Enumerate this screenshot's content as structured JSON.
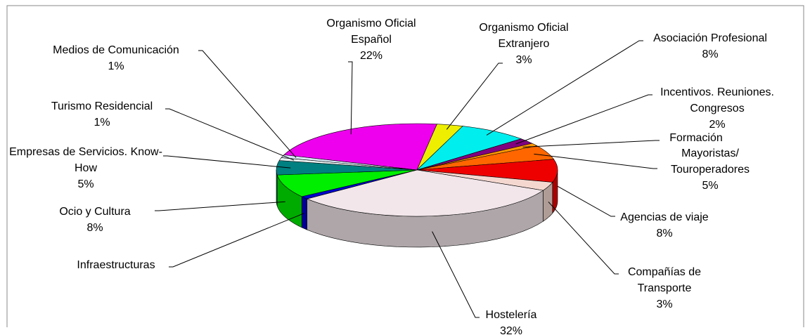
{
  "chart_data": {
    "type": "pie3d",
    "categories": [
      "Organismo Oficial Español",
      "Organismo Oficial Extranjero",
      "Asociación Profesional",
      "Incentivos. Reuniones. Congresos",
      "Formación",
      "Mayoristas/ Touroperadores",
      "Agencias de viaje",
      "Compañías de Transporte",
      "Hostelería",
      "Infraestructuras",
      "Ocio y Cultura",
      "Empresas de Servicios. Know-How",
      "Turismo Residencial",
      "Medios de Comunicación"
    ],
    "values": [
      22,
      3,
      8,
      2,
      1,
      5,
      8,
      3,
      32,
      1,
      8,
      5,
      1,
      1
    ],
    "value_labels": [
      "22%",
      "3%",
      "8%",
      "2%",
      null,
      "5%",
      "8%",
      "3%",
      "32%",
      null,
      "8%",
      "5%",
      "1%",
      "1%"
    ],
    "colors": [
      "#ee00ee",
      "#eeee00",
      "#00eeee",
      "#800080",
      "#ff9900",
      "#ff6600",
      "#ee0000",
      "#f4d8d0",
      "#f2e6ea",
      "#0000cc",
      "#00ee00",
      "#008080",
      "#e8f0f0",
      "#d8e8f8"
    ]
  }
}
